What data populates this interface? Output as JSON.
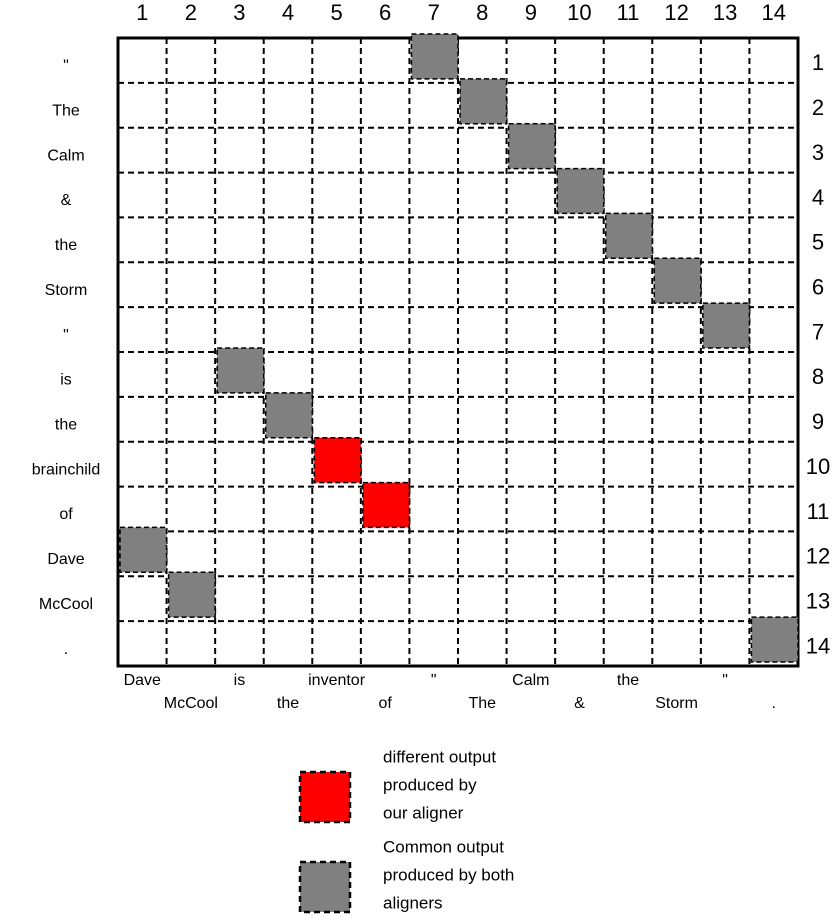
{
  "matrix": {
    "column_numbers": [
      1,
      2,
      3,
      4,
      5,
      6,
      7,
      8,
      9,
      10,
      11,
      12,
      13,
      14
    ],
    "row_numbers": [
      1,
      2,
      3,
      4,
      5,
      6,
      7,
      8,
      9,
      10,
      11,
      12,
      13,
      14
    ],
    "row_words": [
      "\"",
      "The",
      "Calm",
      "&",
      "the",
      "Storm",
      "\"",
      "is",
      "the",
      "brainchild",
      "of",
      "Dave",
      "McCool",
      "."
    ],
    "column_words": [
      "Dave",
      "McCool",
      "is",
      "the",
      "inventor",
      "of",
      "\"",
      "The",
      "Calm",
      "&",
      "the",
      "Storm",
      "\"",
      "."
    ]
  },
  "legend": [
    {
      "color": "#ff0000",
      "lines": [
        "different output",
        "produced by",
        "our aligner"
      ],
      "cells": [
        [
          10,
          5
        ],
        [
          11,
          6
        ]
      ]
    },
    {
      "color": "#808080",
      "lines": [
        "Common output",
        "produced by both",
        "aligners"
      ],
      "cells": [
        [
          1,
          7
        ],
        [
          2,
          8
        ],
        [
          3,
          9
        ],
        [
          4,
          10
        ],
        [
          5,
          11
        ],
        [
          6,
          12
        ],
        [
          7,
          13
        ],
        [
          8,
          3
        ],
        [
          9,
          4
        ],
        [
          12,
          1
        ],
        [
          13,
          2
        ],
        [
          14,
          14
        ]
      ]
    }
  ]
}
